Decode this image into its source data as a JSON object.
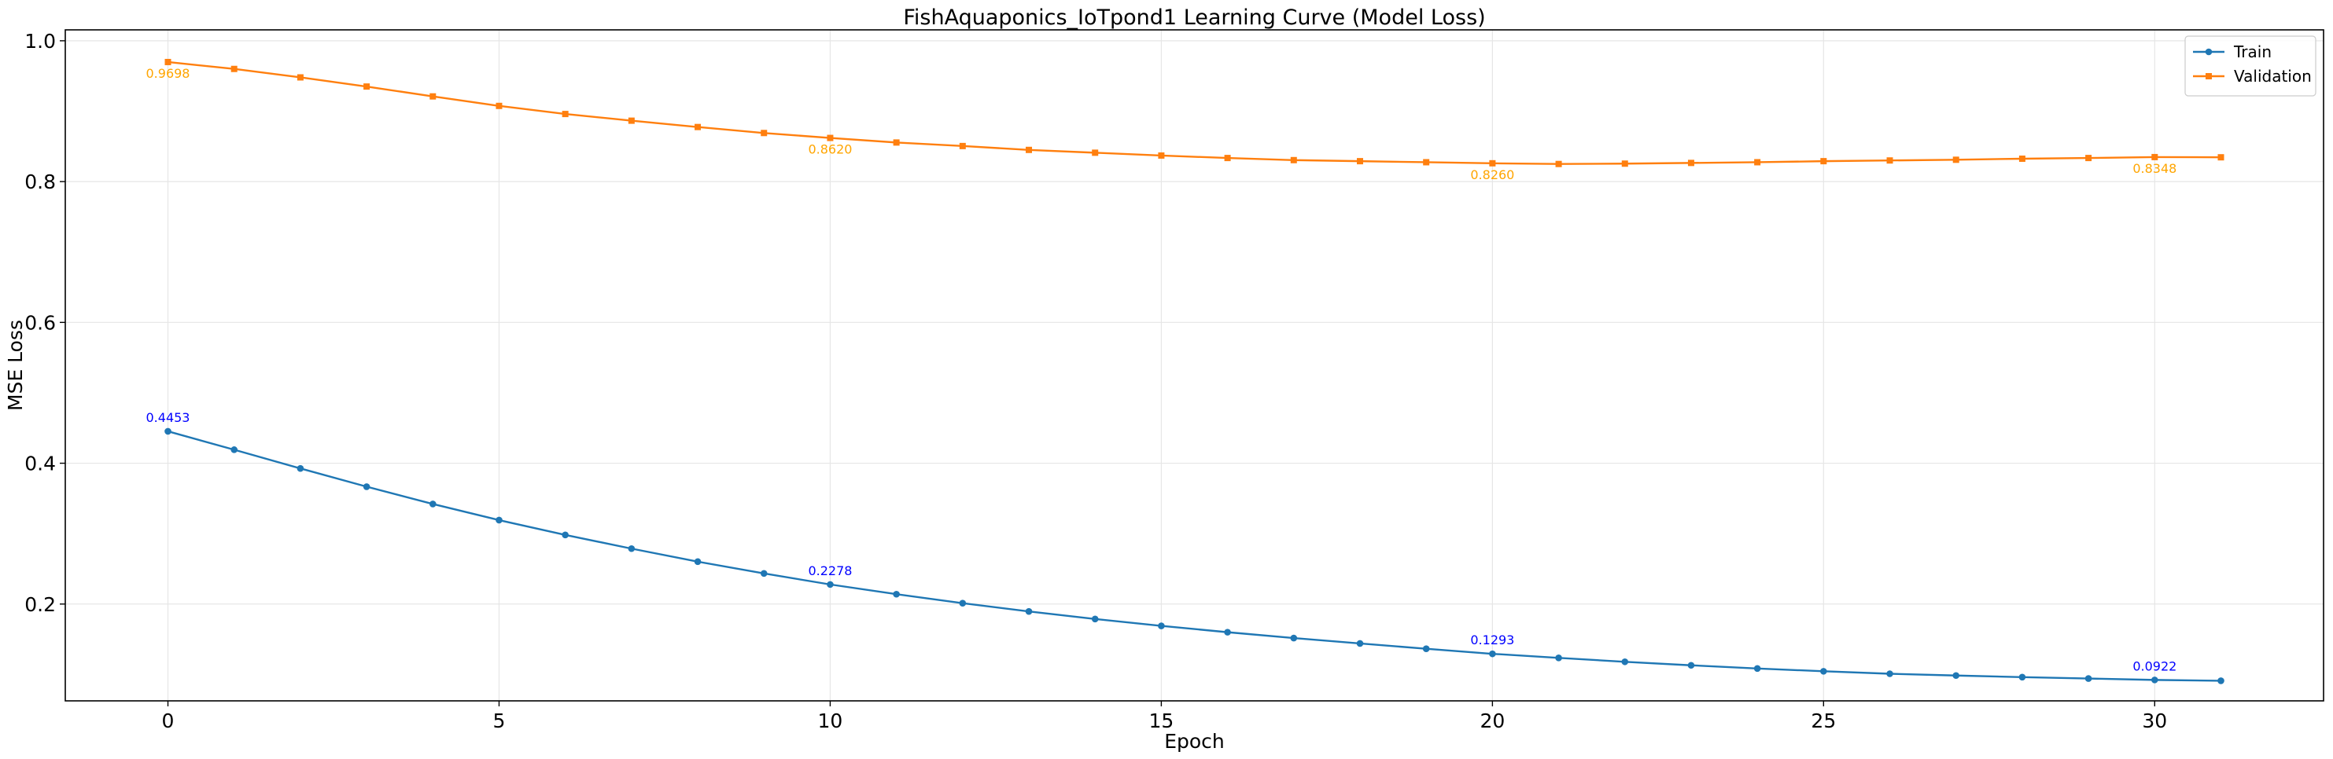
{
  "chart_data": {
    "type": "line",
    "title": "FishAquaponics_IoTpond1 Learning Curve (Model Loss)",
    "xlabel": "Epoch",
    "ylabel": "MSE Loss",
    "xlim": [
      -1.55,
      32.55
    ],
    "ylim": [
      0.0625,
      1.0155
    ],
    "x_ticks": [
      0,
      5,
      10,
      15,
      20,
      25,
      30
    ],
    "y_ticks": [
      0.2,
      0.4,
      0.6,
      0.8,
      1.0
    ],
    "x_tick_labels": [
      "0",
      "5",
      "10",
      "15",
      "20",
      "25",
      "30"
    ],
    "y_tick_labels": [
      "0.2",
      "0.4",
      "0.6",
      "0.8",
      "1.0"
    ],
    "grid": true,
    "legend_position": "top-right",
    "x": [
      0,
      1,
      2,
      3,
      4,
      5,
      6,
      7,
      8,
      9,
      10,
      11,
      12,
      13,
      14,
      15,
      16,
      17,
      18,
      19,
      20,
      21,
      22,
      23,
      24,
      25,
      26,
      27,
      28,
      29,
      30,
      31
    ],
    "series": [
      {
        "name": "Train",
        "color": "#1f77b4",
        "marker": "circle",
        "values": [
          0.4453,
          0.4192,
          0.3926,
          0.3667,
          0.3421,
          0.3192,
          0.2982,
          0.2787,
          0.2602,
          0.2435,
          0.2278,
          0.214,
          0.2012,
          0.1895,
          0.1788,
          0.169,
          0.16,
          0.1517,
          0.144,
          0.1365,
          0.1293,
          0.1235,
          0.118,
          0.113,
          0.1085,
          0.1045,
          0.101,
          0.0985,
          0.0962,
          0.0942,
          0.0922,
          0.091
        ]
      },
      {
        "name": "Validation",
        "color": "#ff7f0e",
        "marker": "square",
        "values": [
          0.9698,
          0.96,
          0.948,
          0.935,
          0.921,
          0.9075,
          0.896,
          0.8865,
          0.8775,
          0.869,
          0.862,
          0.8555,
          0.8505,
          0.845,
          0.841,
          0.837,
          0.8335,
          0.8305,
          0.829,
          0.8275,
          0.826,
          0.825,
          0.8255,
          0.8265,
          0.8275,
          0.829,
          0.83,
          0.831,
          0.8325,
          0.8335,
          0.8348,
          0.8345
        ]
      }
    ],
    "annotations": [
      {
        "series": 0,
        "x": 0,
        "text": "0.4453",
        "color": "#0000ff",
        "placement": "above"
      },
      {
        "series": 0,
        "x": 10,
        "text": "0.2278",
        "color": "#0000ff",
        "placement": "above"
      },
      {
        "series": 0,
        "x": 20,
        "text": "0.1293",
        "color": "#0000ff",
        "placement": "above"
      },
      {
        "series": 0,
        "x": 30,
        "text": "0.0922",
        "color": "#0000ff",
        "placement": "above"
      },
      {
        "series": 1,
        "x": 0,
        "text": "0.9698",
        "color": "#ffa500",
        "placement": "below"
      },
      {
        "series": 1,
        "x": 10,
        "text": "0.8620",
        "color": "#ffa500",
        "placement": "below"
      },
      {
        "series": 1,
        "x": 20,
        "text": "0.8260",
        "color": "#ffa500",
        "placement": "below"
      },
      {
        "series": 1,
        "x": 30,
        "text": "0.8348",
        "color": "#ffa500",
        "placement": "below"
      }
    ]
  }
}
